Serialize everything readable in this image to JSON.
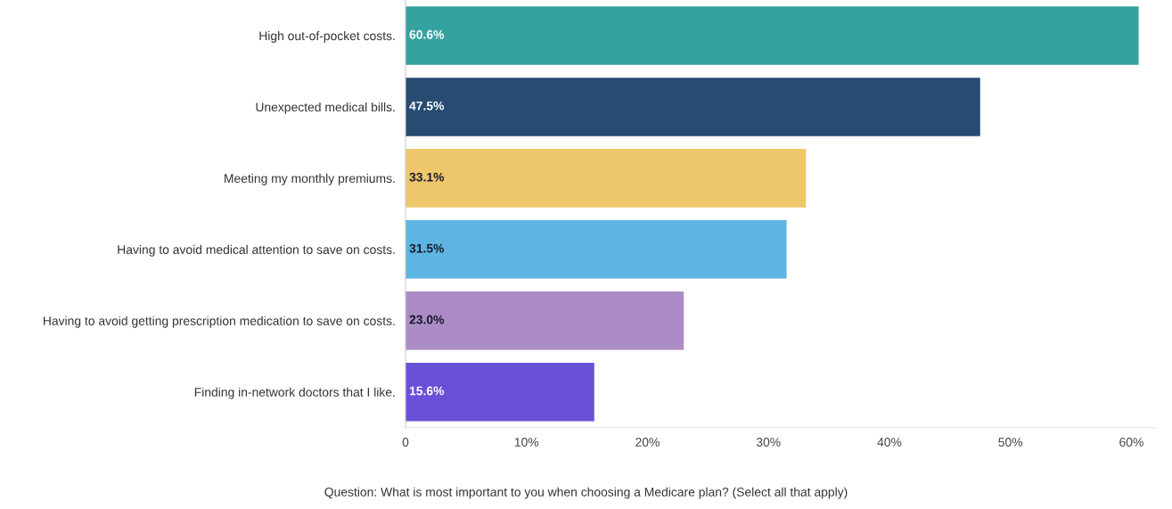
{
  "chart_data": {
    "type": "bar",
    "orientation": "horizontal",
    "categories": [
      "High out-of-pocket costs.",
      "Unexpected medical bills.",
      "Meeting my monthly premiums.",
      "Having to avoid medical attention to save on costs.",
      "Having to avoid getting prescription medication to save on costs.",
      "Finding in-network doctors that I like."
    ],
    "values": [
      60.6,
      47.5,
      33.1,
      31.5,
      23.0,
      15.6
    ],
    "value_labels": [
      "60.6%",
      "47.5%",
      "33.1%",
      "31.5%",
      "23.0%",
      "15.6%"
    ],
    "colors": [
      "#36a2a0",
      "#284b72",
      "#eec76a",
      "#5eb4e3",
      "#ac8cc6",
      "#6a4fd7"
    ],
    "xlim": [
      0,
      62
    ],
    "xticks": [
      0,
      {
        "value": 10,
        "label": "10%"
      },
      {
        "value": 20,
        "label": "20%"
      },
      {
        "value": 30,
        "label": "30%"
      },
      {
        "value": 40,
        "label": "40%"
      },
      {
        "value": 50,
        "label": "50%"
      },
      {
        "value": 60,
        "label": "60%"
      }
    ],
    "grid": false,
    "legend": false,
    "annotations": [
      "Question: What is most important to you when choosing a Medicare plan? (Select all that apply)"
    ]
  }
}
